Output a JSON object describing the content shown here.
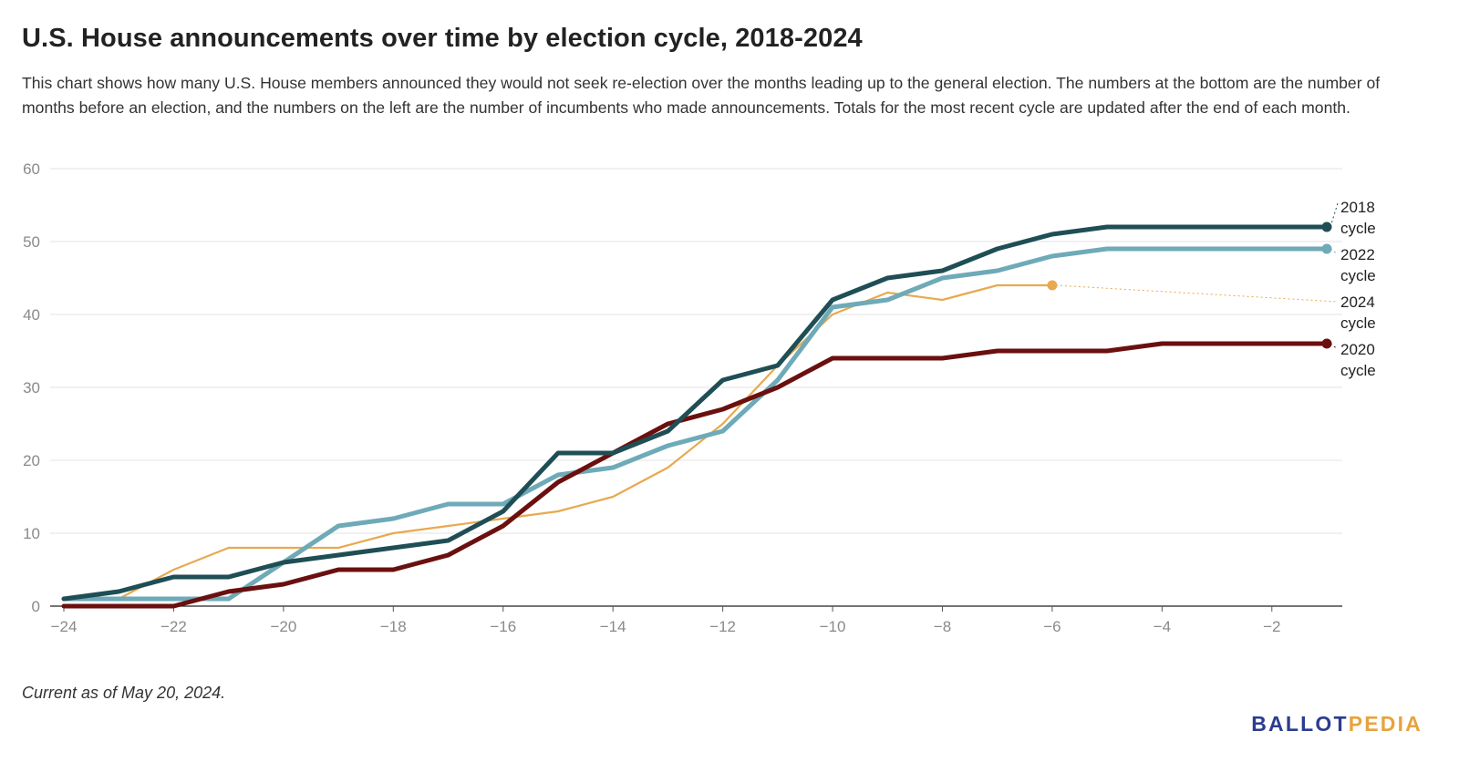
{
  "title": "U.S. House announcements over time by election cycle, 2018-2024",
  "subtitle": "This chart shows how many U.S. House members announced they would not seek re-election over the months leading up to the general election. The numbers at the bottom are the number of months before an election, and the numbers on the left are the number of incumbents who made announcements. Totals for the most recent cycle are updated after the end of each month.",
  "footnote": "Current as of May 20, 2024.",
  "logo": {
    "part1": "BALLOT",
    "part2": "PEDIA"
  },
  "chart_data": {
    "type": "line",
    "xlim": [
      -24,
      -1
    ],
    "ylim": [
      0,
      60
    ],
    "x_ticks": [
      -24,
      -22,
      -20,
      -18,
      -16,
      -14,
      -12,
      -10,
      -8,
      -6,
      -4,
      -2
    ],
    "x_tick_labels": [
      "−24",
      "−22",
      "−20",
      "−18",
      "−16",
      "−14",
      "−12",
      "−10",
      "−8",
      "−6",
      "−4",
      "−2"
    ],
    "y_ticks": [
      0,
      10,
      20,
      30,
      40,
      50,
      60
    ],
    "grid": true,
    "legend": "direct labels at right end of lines",
    "series": [
      {
        "name": "2024 cycle",
        "label_lines": [
          "2024",
          "cycle"
        ],
        "color": "#e8a94f",
        "weight": "thin",
        "x": [
          -24,
          -23,
          -22,
          -21,
          -20,
          -19,
          -18,
          -17,
          -16,
          -15,
          -14,
          -13,
          -12,
          -11,
          -10,
          -9,
          -8,
          -7,
          -6
        ],
        "values": [
          1,
          1,
          5,
          8,
          8,
          8,
          10,
          11,
          12,
          13,
          15,
          19,
          25,
          33,
          40,
          43,
          42,
          44,
          44
        ]
      },
      {
        "name": "2022 cycle",
        "label_lines": [
          "2022",
          "cycle"
        ],
        "color": "#6eaab7",
        "weight": "thick",
        "x": [
          -24,
          -23,
          -22,
          -21,
          -20,
          -19,
          -18,
          -17,
          -16,
          -15,
          -14,
          -13,
          -12,
          -11,
          -10,
          -9,
          -8,
          -7,
          -6,
          -5,
          -4,
          -3,
          -2,
          -1
        ],
        "values": [
          1,
          1,
          1,
          1,
          6,
          11,
          12,
          14,
          14,
          18,
          19,
          22,
          24,
          31,
          41,
          42,
          45,
          46,
          48,
          49,
          49,
          49,
          49,
          49
        ]
      },
      {
        "name": "2020 cycle",
        "label_lines": [
          "2020",
          "cycle"
        ],
        "color": "#6b0f0f",
        "weight": "thick",
        "x": [
          -24,
          -23,
          -22,
          -21,
          -20,
          -19,
          -18,
          -17,
          -16,
          -15,
          -14,
          -13,
          -12,
          -11,
          -10,
          -9,
          -8,
          -7,
          -6,
          -5,
          -4,
          -3,
          -2,
          -1
        ],
        "values": [
          0,
          0,
          0,
          2,
          3,
          5,
          5,
          7,
          11,
          17,
          21,
          25,
          27,
          30,
          34,
          34,
          34,
          35,
          35,
          35,
          36,
          36,
          36,
          36
        ]
      },
      {
        "name": "2018 cycle",
        "label_lines": [
          "2018",
          "cycle"
        ],
        "color": "#1f4e55",
        "weight": "thick",
        "x": [
          -24,
          -23,
          -22,
          -21,
          -20,
          -19,
          -18,
          -17,
          -16,
          -15,
          -14,
          -13,
          -12,
          -11,
          -10,
          -9,
          -8,
          -7,
          -6,
          -5,
          -4,
          -3,
          -2,
          -1
        ],
        "values": [
          1,
          2,
          4,
          4,
          6,
          7,
          8,
          9,
          13,
          21,
          21,
          24,
          31,
          33,
          42,
          45,
          46,
          49,
          51,
          52,
          52,
          52,
          52,
          52
        ]
      }
    ]
  }
}
